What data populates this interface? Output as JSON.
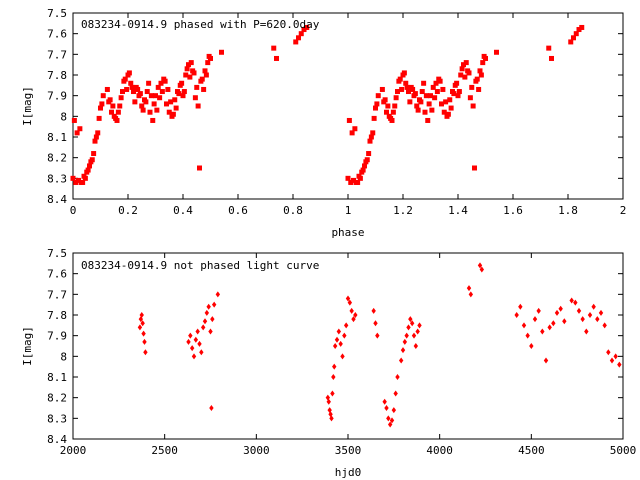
{
  "chart_data": [
    {
      "type": "scatter",
      "title": "083234-0914.9 phased with P=620.0day",
      "xlabel": "phase",
      "ylabel": "I[mag]",
      "xlim": [
        0,
        2
      ],
      "ylim": [
        8.4,
        7.5
      ],
      "y_inverted": true,
      "grid": false,
      "marker": "filled-square",
      "color": "#ff0000",
      "xticks": [
        "0",
        "0.2",
        "0.4",
        "0.6",
        "0.8",
        "1",
        "1.2",
        "1.4",
        "1.6",
        "1.8",
        "2"
      ],
      "yticks": [
        "7.5",
        "7.6",
        "7.7",
        "7.8",
        "7.9",
        "8",
        "8.1",
        "8.2",
        "8.3",
        "8.4"
      ],
      "xtick_values": [
        0,
        0.2,
        0.4,
        0.6,
        0.8,
        1.0,
        1.2,
        1.4,
        1.6,
        1.8,
        2.0
      ],
      "ytick_values": [
        7.5,
        7.6,
        7.7,
        7.8,
        7.9,
        8.0,
        8.1,
        8.2,
        8.3,
        8.4
      ],
      "x": [
        0.0,
        0.01,
        0.02,
        0.03,
        0.04,
        0.05,
        0.06,
        0.07,
        0.08,
        0.09,
        0.1,
        0.11,
        0.13,
        0.14,
        0.15,
        0.16,
        0.17,
        0.18,
        0.19,
        0.2,
        0.21,
        0.22,
        0.23,
        0.24,
        0.25,
        0.26,
        0.27,
        0.28,
        0.29,
        0.3,
        0.31,
        0.32,
        0.33,
        0.34,
        0.35,
        0.36,
        0.37,
        0.38,
        0.39,
        0.4,
        0.41,
        0.42,
        0.43,
        0.44,
        0.45,
        0.46,
        0.47,
        0.48,
        0.49,
        0.5,
        0.54,
        0.73,
        0.74,
        0.81,
        0.82,
        0.83,
        0.84,
        0.85,
        0.005,
        0.015,
        0.025,
        0.035,
        0.045,
        0.055,
        0.065,
        0.075,
        0.085,
        0.095,
        0.105,
        0.125,
        0.135,
        0.145,
        0.155,
        0.165,
        0.175,
        0.185,
        0.195,
        0.205,
        0.215,
        0.225,
        0.235,
        0.245,
        0.255,
        0.265,
        0.275,
        0.285,
        0.295,
        0.305,
        0.315,
        0.325,
        0.335,
        0.345,
        0.355,
        0.365,
        0.375,
        0.385,
        0.395,
        0.405,
        0.415,
        0.425,
        0.435,
        0.445,
        0.455,
        0.465,
        0.475,
        0.485,
        0.495
      ],
      "y": [
        8.3,
        8.32,
        8.31,
        8.32,
        8.29,
        8.27,
        8.24,
        8.21,
        8.12,
        8.08,
        7.96,
        7.9,
        7.93,
        7.98,
        8.0,
        8.02,
        7.95,
        7.88,
        7.82,
        7.8,
        7.84,
        7.88,
        7.86,
        7.9,
        7.95,
        7.92,
        7.88,
        7.98,
        8.02,
        7.9,
        7.86,
        7.84,
        7.82,
        7.94,
        7.98,
        8.0,
        7.92,
        7.88,
        7.85,
        7.9,
        7.8,
        7.75,
        7.74,
        7.79,
        7.86,
        8.25,
        7.82,
        7.78,
        7.74,
        7.72,
        7.69,
        7.67,
        7.72,
        7.64,
        7.62,
        7.6,
        7.58,
        7.57,
        8.02,
        8.08,
        8.06,
        8.32,
        8.3,
        8.26,
        8.22,
        8.18,
        8.1,
        8.01,
        7.94,
        7.87,
        7.92,
        7.95,
        8.01,
        7.98,
        7.91,
        7.83,
        7.87,
        7.79,
        7.86,
        7.93,
        7.87,
        7.89,
        7.97,
        7.93,
        7.84,
        7.9,
        7.94,
        7.97,
        7.91,
        7.88,
        7.83,
        7.87,
        7.93,
        7.99,
        7.96,
        7.89,
        7.84,
        7.88,
        7.77,
        7.81,
        7.78,
        7.91,
        7.95,
        7.83,
        7.87,
        7.8,
        7.71
      ],
      "mirror_offset": 1.0
    },
    {
      "type": "scatter",
      "title": "083234-0914.9 not phased light curve",
      "xlabel": "hjd0",
      "ylabel": "I[mag]",
      "xlim": [
        2000,
        5000
      ],
      "ylim": [
        8.4,
        7.5
      ],
      "y_inverted": true,
      "grid": false,
      "marker": "filled-diamond",
      "color": "#ff0000",
      "xticks": [
        "2000",
        "2500",
        "3000",
        "3500",
        "4000",
        "4500",
        "5000"
      ],
      "yticks": [
        "7.5",
        "7.6",
        "7.7",
        "7.8",
        "7.9",
        "8",
        "8.1",
        "8.2",
        "8.3",
        "8.4"
      ],
      "xtick_values": [
        2000,
        2500,
        3000,
        3500,
        4000,
        4500,
        5000
      ],
      "ytick_values": [
        7.5,
        7.6,
        7.7,
        7.8,
        7.9,
        8.0,
        8.1,
        8.2,
        8.3,
        8.4
      ],
      "x": [
        2365,
        2370,
        2375,
        2380,
        2385,
        2390,
        2395,
        2630,
        2640,
        2650,
        2660,
        2670,
        2680,
        2690,
        2700,
        2710,
        2720,
        2730,
        2740,
        2750,
        2760,
        2770,
        2790,
        2755,
        3390,
        3395,
        3400,
        3405,
        3410,
        3415,
        3420,
        3425,
        3430,
        3440,
        3450,
        3460,
        3470,
        3480,
        3490,
        3500,
        3510,
        3520,
        3530,
        3540,
        3640,
        3650,
        3660,
        3700,
        3710,
        3720,
        3730,
        3740,
        3750,
        3760,
        3770,
        3790,
        3800,
        3810,
        3820,
        3830,
        3840,
        3850,
        3860,
        3870,
        3880,
        3890,
        4160,
        4170,
        4220,
        4230,
        4420,
        4440,
        4460,
        4480,
        4500,
        4520,
        4540,
        4560,
        4580,
        4600,
        4620,
        4640,
        4660,
        4680,
        4720,
        4740,
        4760,
        4780,
        4800,
        4820,
        4840,
        4860,
        4880,
        4900,
        4920,
        4940,
        4960,
        4980
      ],
      "y": [
        7.86,
        7.82,
        7.8,
        7.84,
        7.89,
        7.93,
        7.98,
        7.93,
        7.9,
        7.96,
        8.0,
        7.92,
        7.88,
        7.94,
        7.98,
        7.86,
        7.83,
        7.79,
        7.76,
        7.88,
        7.82,
        7.75,
        7.7,
        8.25,
        8.2,
        8.22,
        8.26,
        8.28,
        8.3,
        8.18,
        8.1,
        8.05,
        7.95,
        7.92,
        7.88,
        7.94,
        8.0,
        7.9,
        7.85,
        7.72,
        7.74,
        7.78,
        7.82,
        7.8,
        7.78,
        7.84,
        7.9,
        8.22,
        8.25,
        8.3,
        8.33,
        8.31,
        8.26,
        8.18,
        8.1,
        8.02,
        7.97,
        7.93,
        7.9,
        7.86,
        7.82,
        7.84,
        7.9,
        7.95,
        7.88,
        7.85,
        7.67,
        7.7,
        7.56,
        7.58,
        7.8,
        7.76,
        7.85,
        7.9,
        7.95,
        7.82,
        7.78,
        7.88,
        8.02,
        7.86,
        7.84,
        7.79,
        7.77,
        7.83,
        7.73,
        7.74,
        7.78,
        7.82,
        7.88,
        7.8,
        7.76,
        7.82,
        7.79,
        7.85,
        7.98,
        8.02,
        8.0,
        8.04
      ]
    }
  ]
}
